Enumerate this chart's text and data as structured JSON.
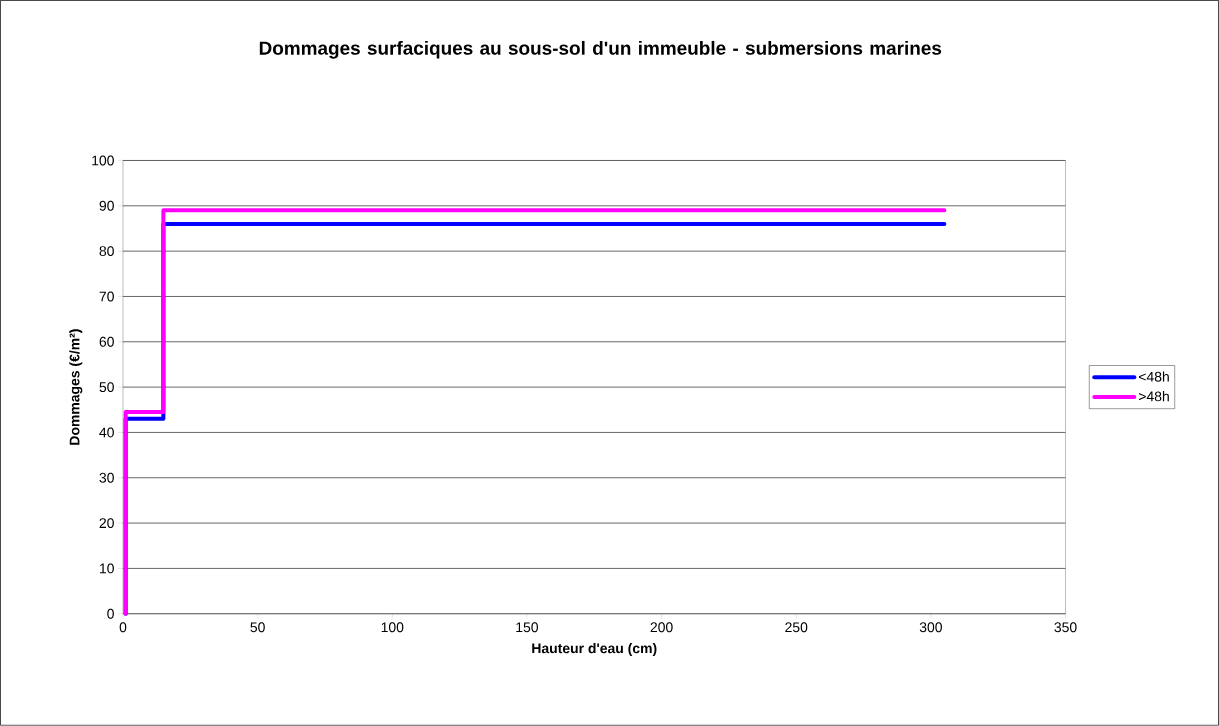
{
  "chart_data": {
    "type": "line",
    "title": "Dommages surfaciques au sous-sol d'un immeuble - submersions marines",
    "xlabel": "Hauteur d'eau (cm)",
    "ylabel": "Dommages (€/m²)",
    "series": [
      {
        "name": "<48h",
        "color": "#0000ff",
        "x": [
          1,
          1,
          15,
          15,
          305
        ],
        "values": [
          0,
          43,
          43,
          86,
          86
        ]
      },
      {
        "name": ">48h",
        "color": "#ff00ff",
        "x": [
          1,
          1,
          15,
          15,
          305
        ],
        "values": [
          0,
          44.5,
          44.5,
          89,
          89
        ]
      }
    ],
    "xlim": [
      0,
      350
    ],
    "xticks": [
      0,
      50,
      100,
      150,
      200,
      250,
      300,
      350
    ],
    "ylim": [
      0,
      100
    ],
    "yticks": [
      0,
      10,
      20,
      30,
      40,
      50,
      60,
      70,
      80,
      90,
      100
    ],
    "grid": "y",
    "legend": "right",
    "marker": "none",
    "line_style": "solid"
  }
}
